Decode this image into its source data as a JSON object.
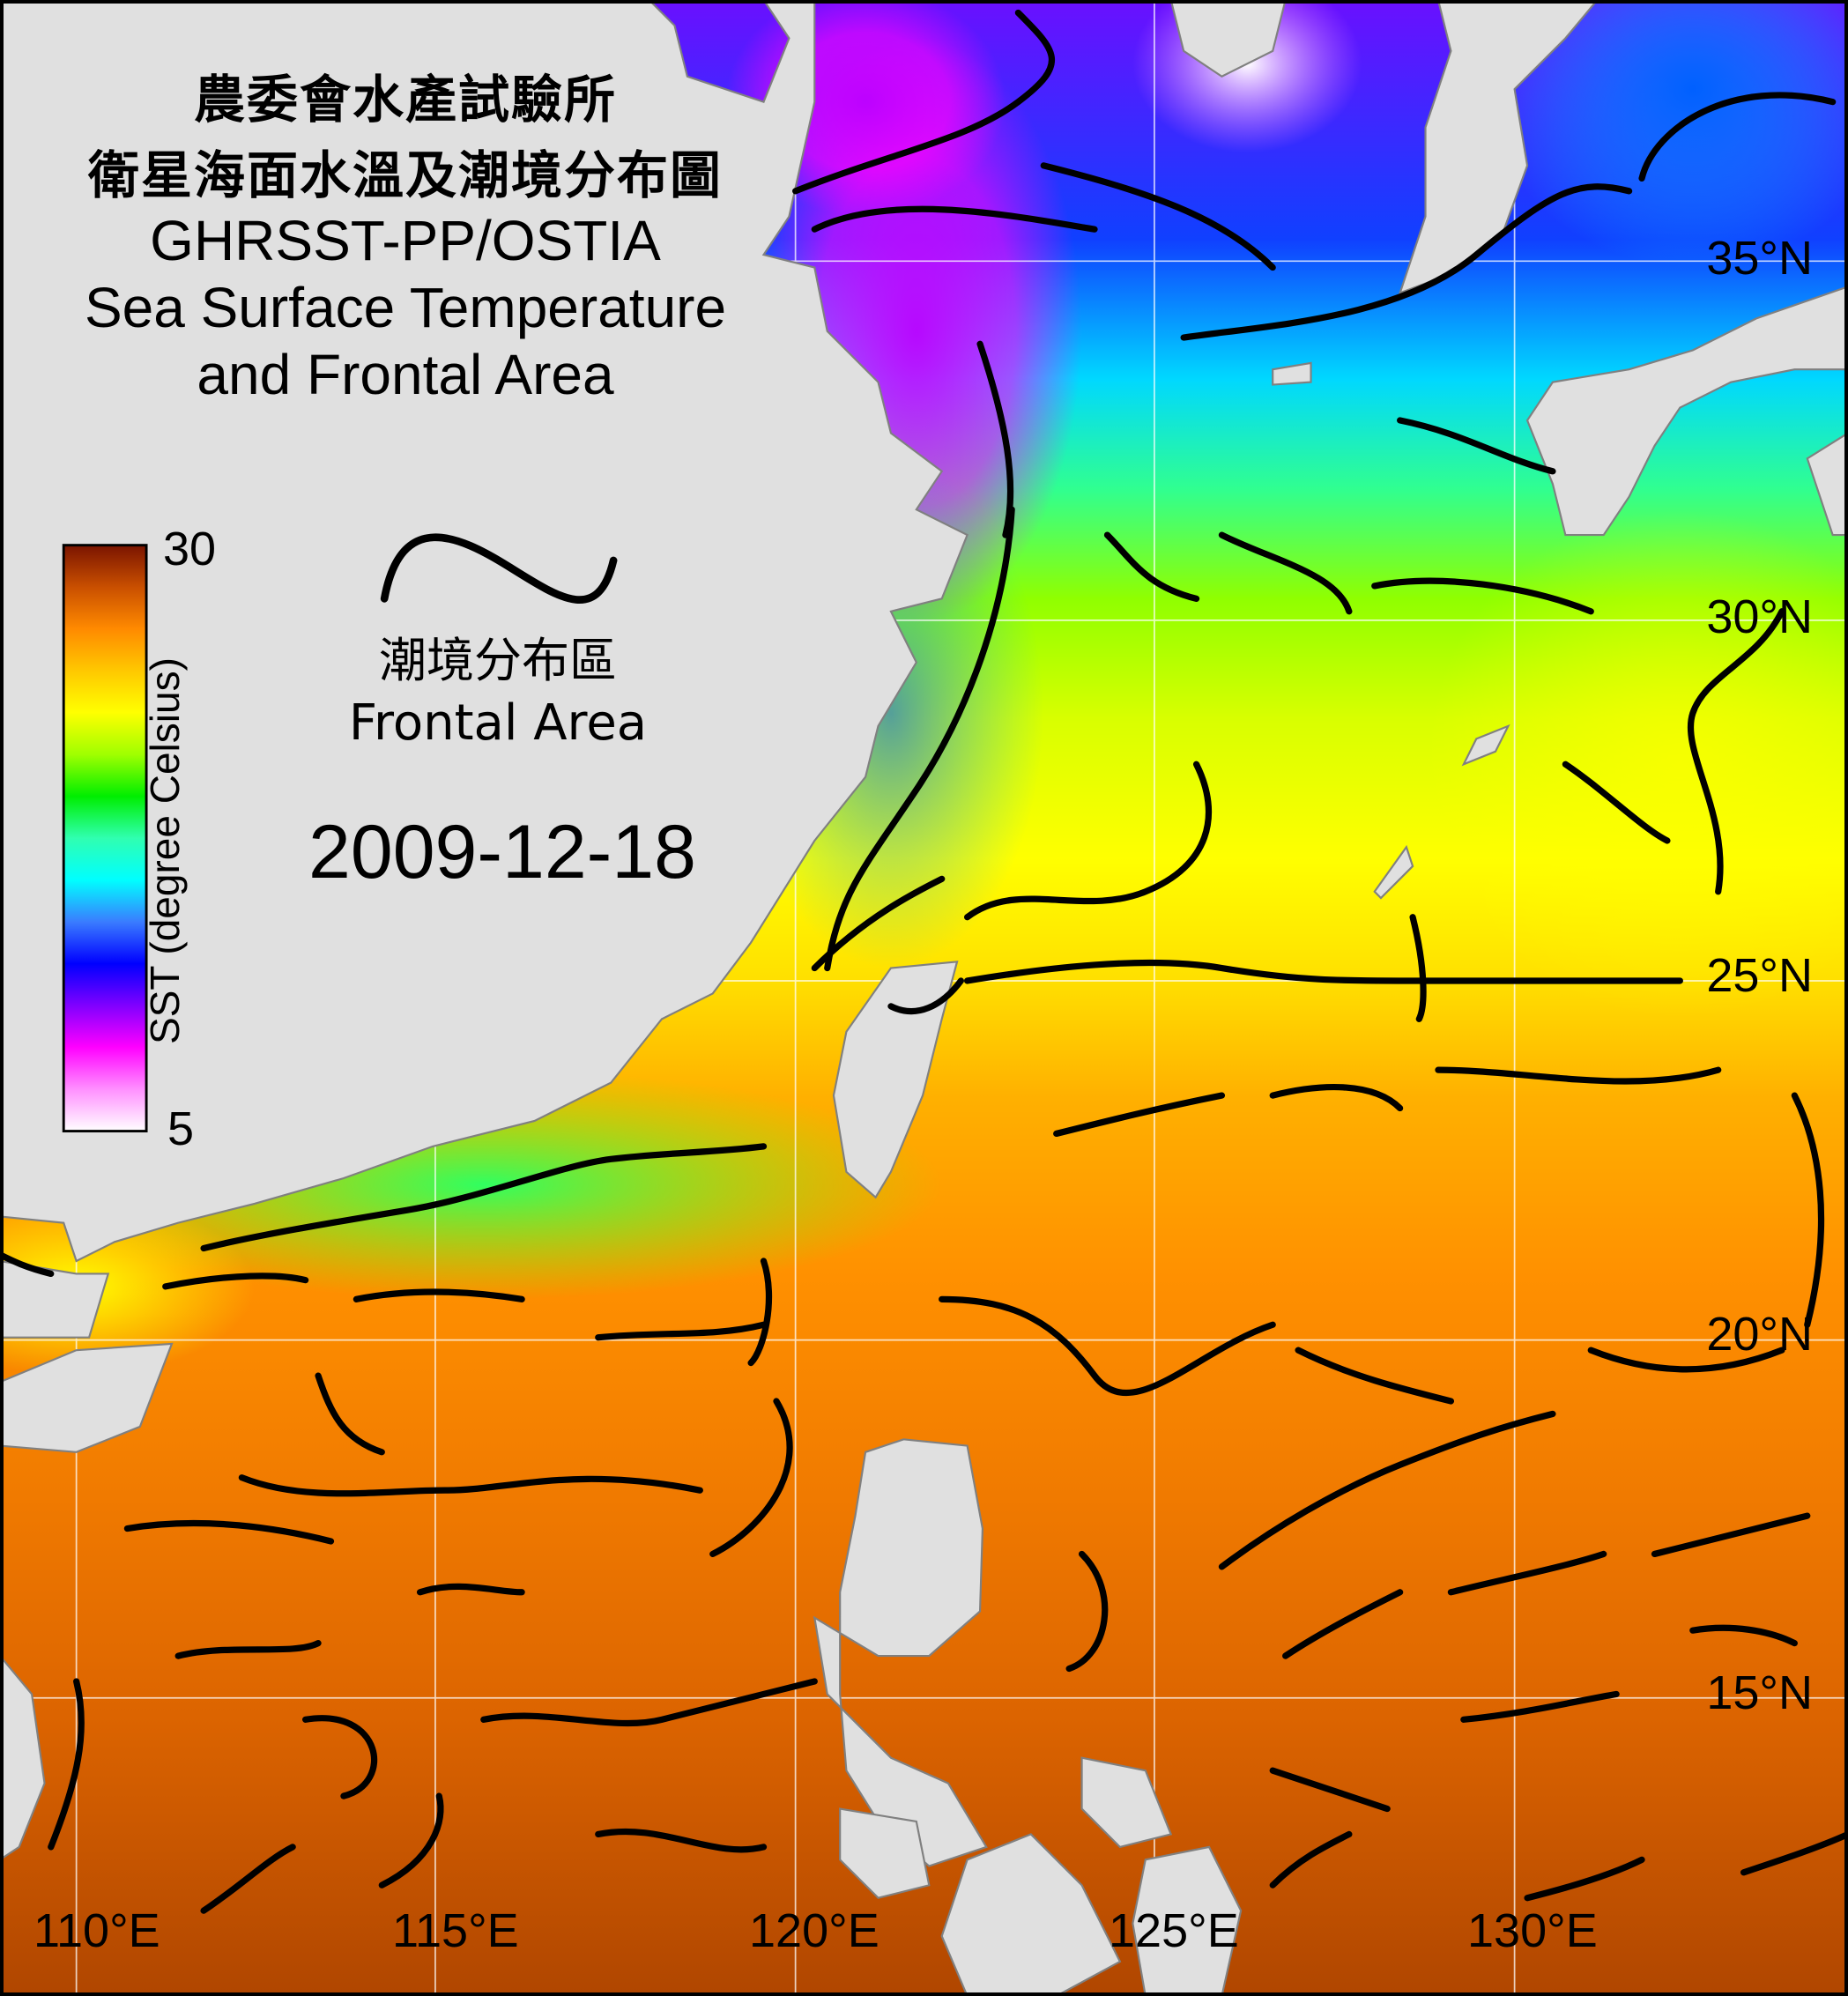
{
  "header": {
    "line1": "農委會水產試驗所",
    "line2": "衛星海面水溫及潮境分布圖",
    "line3": "GHRSST-PP/OSTIA",
    "line4": "Sea Surface Temperature",
    "line5": "and Frontal Area"
  },
  "colorbar": {
    "label": "SST (degree Celsius)",
    "max": "30",
    "min": "5",
    "colors": [
      "#7a1400",
      "#c94f00",
      "#ff8a00",
      "#ffc800",
      "#ffff00",
      "#a0ff00",
      "#00ee00",
      "#30ffb0",
      "#00ffff",
      "#3a7cff",
      "#0000ff",
      "#8000ff",
      "#ff00ff",
      "#ff90ff",
      "#ffffff"
    ]
  },
  "legend": {
    "label_zh": "潮境分布區",
    "label_en": "Frontal Area",
    "icon": "front-line-icon"
  },
  "date": "2009-12-18",
  "lat_labels": [
    "35°N",
    "30°N",
    "25°N",
    "20°N",
    "15°N"
  ],
  "lon_labels": [
    "110°E",
    "115°E",
    "120°E",
    "125°E",
    "130°E"
  ],
  "colors": {
    "land": "#e0e0e0",
    "front": "#000000",
    "grid": "#ffffff"
  }
}
